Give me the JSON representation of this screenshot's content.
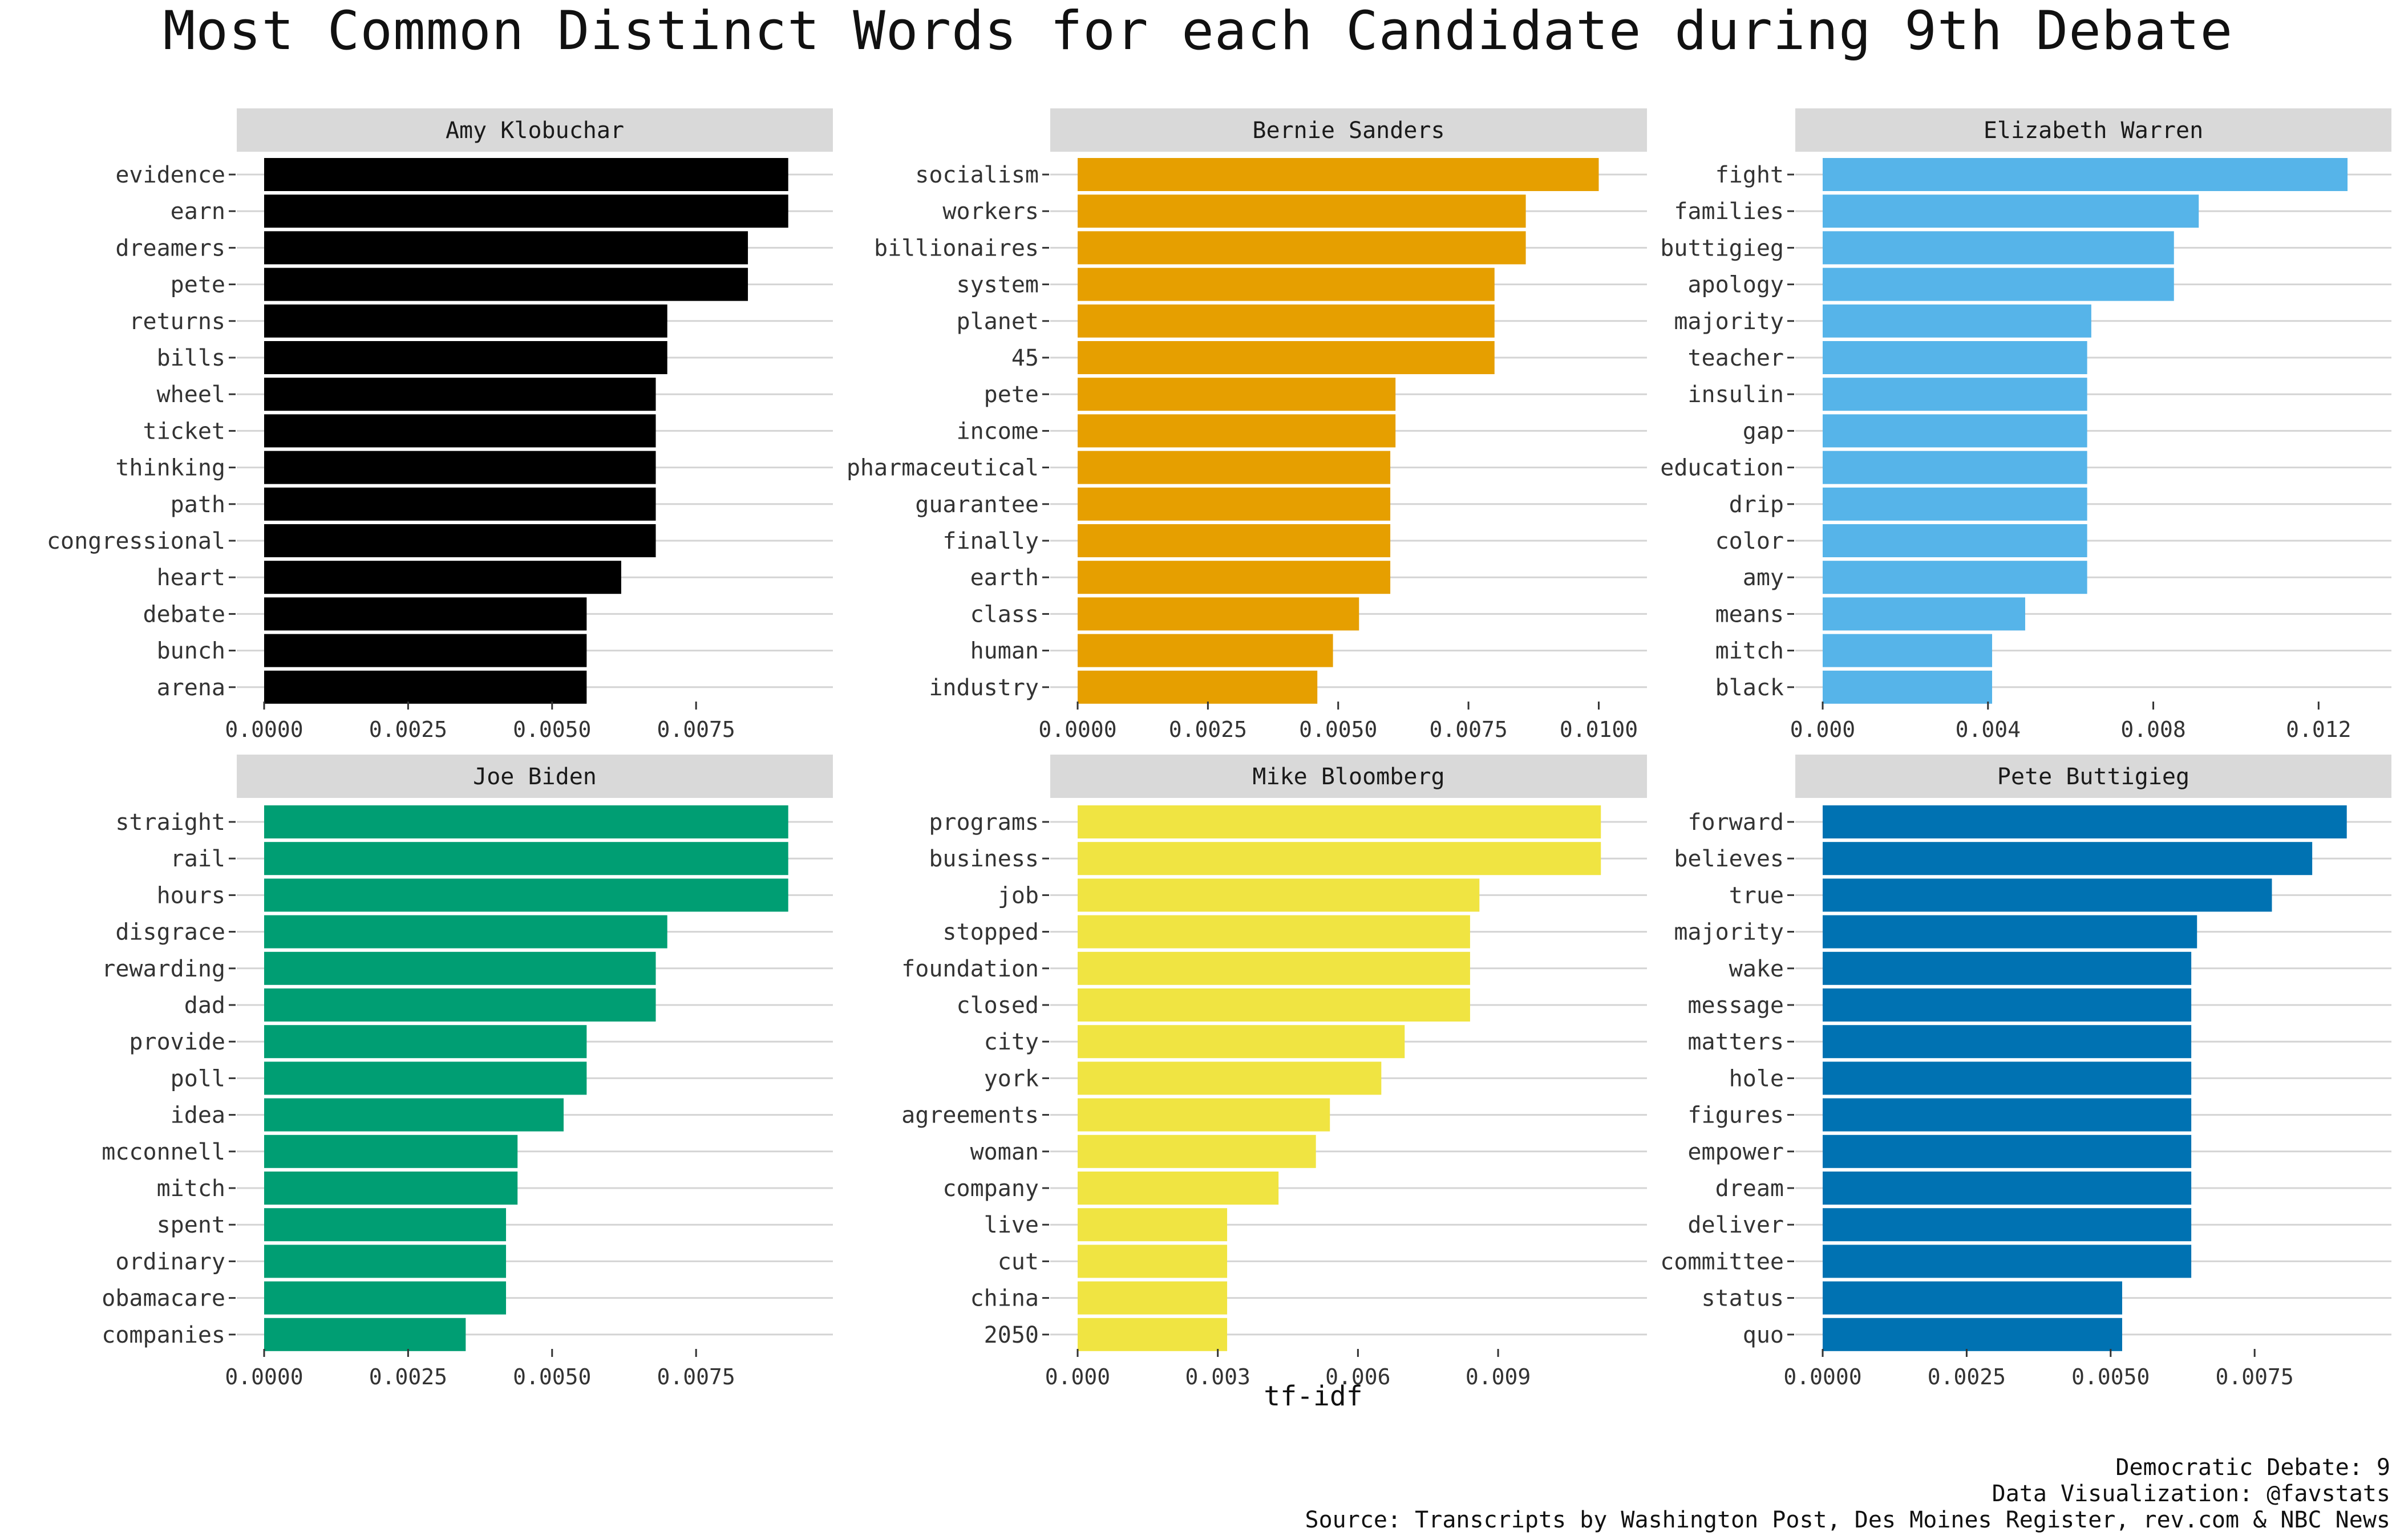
{
  "title": "Most Common Distinct Words for each Candidate during 9th Debate",
  "caption": {
    "line1": "Democratic Debate: 9",
    "line2": "Data Visualization: @favstats",
    "line3": "Source: Transcripts by Washington Post, Des Moines Register, rev.com & NBC News"
  },
  "chart_data": {
    "type": "bar",
    "orientation": "horizontal",
    "xlabel": "tf-idf",
    "ylabel": "",
    "facets": [
      {
        "name": "Amy Klobuchar",
        "color": "#000000",
        "xlim": [
          0,
          0.0094
        ],
        "ticks": [
          "0.0000",
          "0.0025",
          "0.0050",
          "0.0075"
        ],
        "tick_values": [
          0,
          0.0025,
          0.005,
          0.0075
        ],
        "categories": [
          "evidence",
          "earn",
          "dreamers",
          "pete",
          "returns",
          "bills",
          "wheel",
          "ticket",
          "thinking",
          "path",
          "congressional",
          "heart",
          "debate",
          "bunch",
          "arena"
        ],
        "values": [
          0.0091,
          0.0091,
          0.0084,
          0.0084,
          0.007,
          0.007,
          0.0068,
          0.0068,
          0.0068,
          0.0068,
          0.0068,
          0.0062,
          0.0056,
          0.0056,
          0.0056
        ]
      },
      {
        "name": "Bernie Sanders",
        "color": "#E69F00",
        "xlim": [
          0,
          0.0104
        ],
        "ticks": [
          "0.0000",
          "0.0025",
          "0.0050",
          "0.0075",
          "0.0100"
        ],
        "tick_values": [
          0,
          0.0025,
          0.005,
          0.0075,
          0.01
        ],
        "categories": [
          "socialism",
          "workers",
          "billionaires",
          "system",
          "planet",
          "45",
          "pete",
          "income",
          "pharmaceutical",
          "guarantee",
          "finally",
          "earth",
          "class",
          "human",
          "industry"
        ],
        "values": [
          0.01,
          0.0086,
          0.0086,
          0.008,
          0.008,
          0.008,
          0.0061,
          0.0061,
          0.006,
          0.006,
          0.006,
          0.006,
          0.0054,
          0.0049,
          0.0046
        ]
      },
      {
        "name": "Elizabeth Warren",
        "color": "#56B4E9",
        "xlim": [
          0,
          0.0131
        ],
        "ticks": [
          "0.000",
          "0.004",
          "0.008",
          "0.012"
        ],
        "tick_values": [
          0,
          0.004,
          0.008,
          0.012
        ],
        "categories": [
          "fight",
          "families",
          "buttigieg",
          "apology",
          "majority",
          "teacher",
          "insulin",
          "gap",
          "education",
          "drip",
          "color",
          "amy",
          "means",
          "mitch",
          "black"
        ],
        "values": [
          0.0127,
          0.0091,
          0.0085,
          0.0085,
          0.0065,
          0.0064,
          0.0064,
          0.0064,
          0.0064,
          0.0064,
          0.0064,
          0.0064,
          0.0049,
          0.0041,
          0.0041
        ]
      },
      {
        "name": "Joe Biden",
        "color": "#009E73",
        "xlim": [
          0,
          0.0094
        ],
        "ticks": [
          "0.0000",
          "0.0025",
          "0.0050",
          "0.0075"
        ],
        "tick_values": [
          0,
          0.0025,
          0.005,
          0.0075
        ],
        "categories": [
          "straight",
          "rail",
          "hours",
          "disgrace",
          "rewarding",
          "dad",
          "provide",
          "poll",
          "idea",
          "mcconnell",
          "mitch",
          "spent",
          "ordinary",
          "obamacare",
          "companies"
        ],
        "values": [
          0.0091,
          0.0091,
          0.0091,
          0.007,
          0.0068,
          0.0068,
          0.0056,
          0.0056,
          0.0052,
          0.0044,
          0.0044,
          0.0042,
          0.0042,
          0.0042,
          0.0035
        ]
      },
      {
        "name": "Mike Bloomberg",
        "color": "#F0E442",
        "xlim": [
          0,
          0.0116
        ],
        "ticks": [
          "0.000",
          "0.003",
          "0.006",
          "0.009"
        ],
        "tick_values": [
          0,
          0.003,
          0.006,
          0.009
        ],
        "categories": [
          "programs",
          "business",
          "job",
          "stopped",
          "foundation",
          "closed",
          "city",
          "york",
          "agreements",
          "woman",
          "company",
          "live",
          "cut",
          "china",
          "2050"
        ],
        "values": [
          0.0112,
          0.0112,
          0.0086,
          0.0084,
          0.0084,
          0.0084,
          0.007,
          0.0065,
          0.0054,
          0.0051,
          0.0043,
          0.0032,
          0.0032,
          0.0032,
          0.0032
        ]
      },
      {
        "name": "Pete Buttigieg",
        "color": "#0072B2",
        "xlim": [
          0,
          0.0094
        ],
        "ticks": [
          "0.0000",
          "0.0025",
          "0.0050",
          "0.0075"
        ],
        "tick_values": [
          0,
          0.0025,
          0.005,
          0.0075
        ],
        "categories": [
          "forward",
          "believes",
          "true",
          "majority",
          "wake",
          "message",
          "matters",
          "hole",
          "figures",
          "empower",
          "dream",
          "deliver",
          "committee",
          "status",
          "quo"
        ],
        "values": [
          0.0091,
          0.0085,
          0.0078,
          0.0065,
          0.0064,
          0.0064,
          0.0064,
          0.0064,
          0.0064,
          0.0064,
          0.0064,
          0.0064,
          0.0064,
          0.0052,
          0.0052
        ]
      }
    ]
  }
}
